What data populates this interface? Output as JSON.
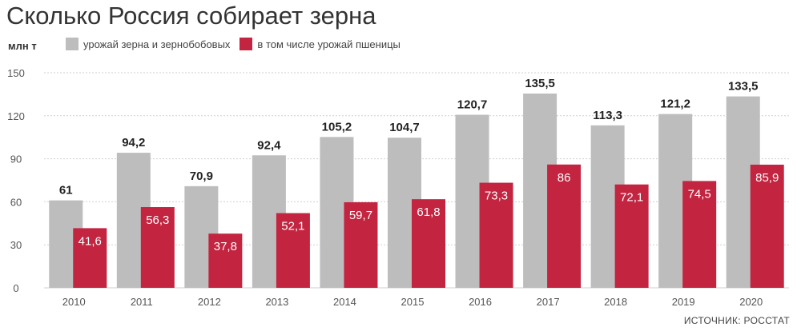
{
  "title": "Сколько Россия собирает зерна",
  "unit_label": "млн т",
  "source": "ИСТОЧНИК: РОССТАТ",
  "colors": {
    "grain": "#bdbdbd",
    "wheat": "#c32440",
    "grid": "#cfcfcf"
  },
  "chart_data": {
    "type": "bar",
    "categories": [
      "2010",
      "2011",
      "2012",
      "2013",
      "2014",
      "2015",
      "2016",
      "2017",
      "2018",
      "2019",
      "2020"
    ],
    "series": [
      {
        "name": "урожай зерна и зернобобовых",
        "values": [
          61,
          94.2,
          70.9,
          92.4,
          105.2,
          104.7,
          120.7,
          135.5,
          113.3,
          121.2,
          133.5
        ],
        "labels": [
          "61",
          "94,2",
          "70,9",
          "92,4",
          "105,2",
          "104,7",
          "120,7",
          "135,5",
          "113,3",
          "121,2",
          "133,5"
        ]
      },
      {
        "name": "в том числе урожай пшеницы",
        "values": [
          41.6,
          56.3,
          37.8,
          52.1,
          59.7,
          61.8,
          73.3,
          86,
          72.1,
          74.5,
          85.9
        ],
        "labels": [
          "41,6",
          "56,3",
          "37,8",
          "52,1",
          "59,7",
          "61,8",
          "73,3",
          "86",
          "72,1",
          "74,5",
          "85,9"
        ]
      }
    ],
    "yticks": [
      "0",
      "30",
      "60",
      "90",
      "120",
      "150"
    ],
    "ylim": [
      0,
      150
    ],
    "grid": true,
    "legend_position": "top-left"
  }
}
